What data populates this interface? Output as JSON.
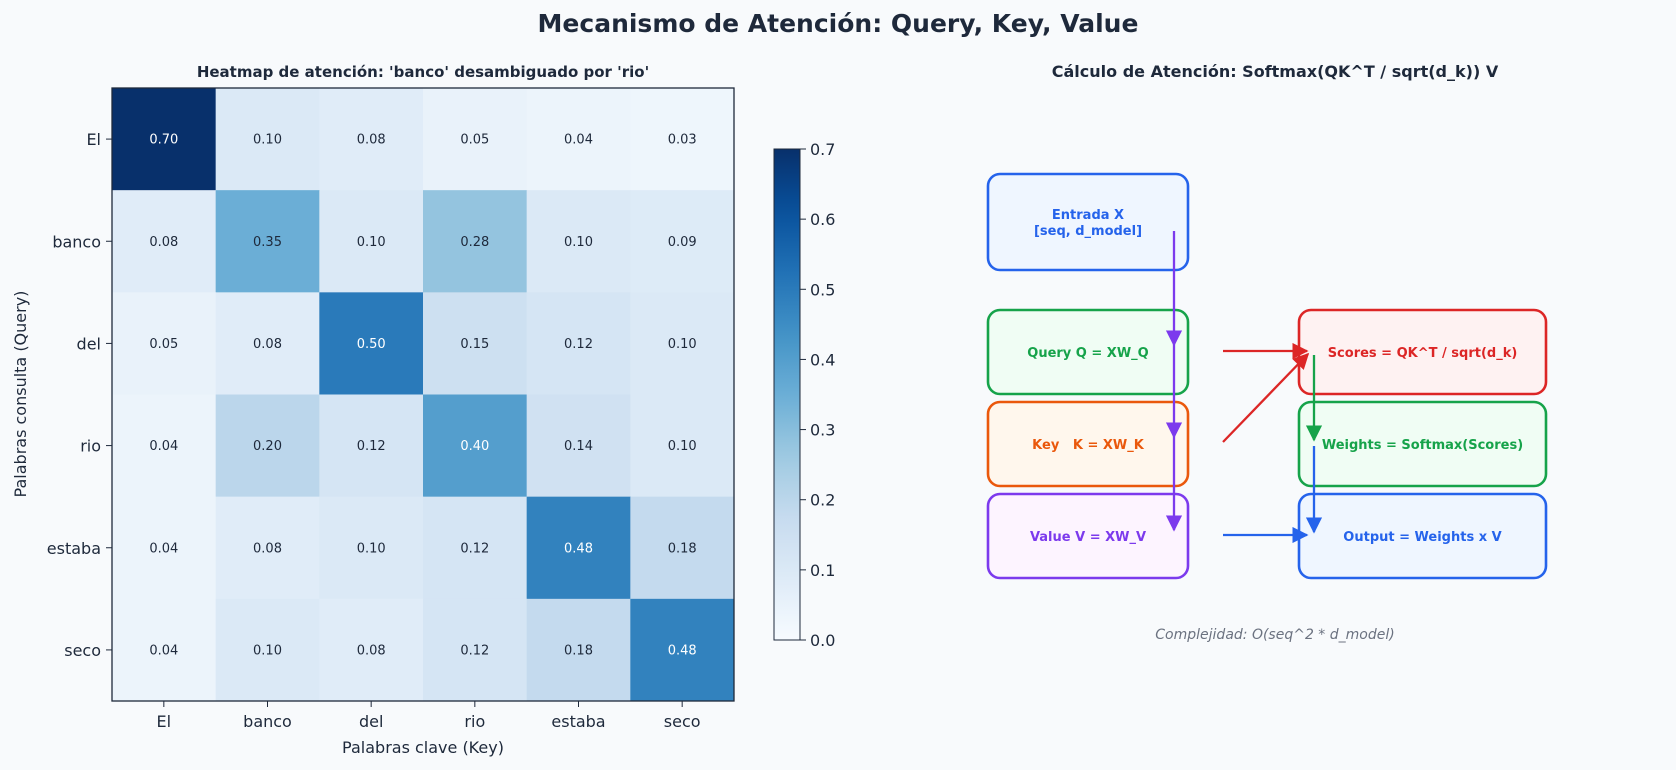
{
  "title": "Mecanismo de Atención: Query, Key, Value",
  "colors": {
    "blue": "#2563eb",
    "green": "#16a34a",
    "orange": "#ea580c",
    "purple": "#7c3aed",
    "red": "#dc2626"
  },
  "chart_data": {
    "type": "heatmap",
    "title": "Heatmap de atención: 'banco' desambiguado por 'rio'",
    "xlabel": "Palabras clave (Key)",
    "ylabel": "Palabras consulta (Query)",
    "x_labels": [
      "El",
      "banco",
      "del",
      "rio",
      "estaba",
      "seco"
    ],
    "y_labels": [
      "El",
      "banco",
      "del",
      "rio",
      "estaba",
      "seco"
    ],
    "values": [
      [
        0.7,
        0.1,
        0.08,
        0.05,
        0.04,
        0.03
      ],
      [
        0.08,
        0.35,
        0.1,
        0.28,
        0.1,
        0.09
      ],
      [
        0.05,
        0.08,
        0.5,
        0.15,
        0.12,
        0.1
      ],
      [
        0.04,
        0.2,
        0.12,
        0.4,
        0.14,
        0.1
      ],
      [
        0.04,
        0.08,
        0.1,
        0.12,
        0.48,
        0.18
      ],
      [
        0.04,
        0.1,
        0.08,
        0.12,
        0.18,
        0.48
      ]
    ],
    "colormap": "Blues",
    "colorbar": {
      "range": [
        0.0,
        0.7
      ],
      "ticks": [
        "0.0",
        "0.1",
        "0.2",
        "0.3",
        "0.4",
        "0.5",
        "0.6",
        "0.7"
      ]
    }
  },
  "diagram": {
    "title": "Cálculo de Atención: Softmax(QK^T / sqrt(d_k)) V",
    "boxes": [
      {
        "id": "entrada",
        "lines": [
          "Entrada X",
          "[seq, d_model]"
        ],
        "color": "#2563eb",
        "fill": "#eff6ff"
      },
      {
        "id": "query",
        "lines": [
          "Query Q = XW_Q"
        ],
        "color": "#16a34a",
        "fill": "#f0fdf4"
      },
      {
        "id": "key",
        "lines": [
          "Key   K = XW_K"
        ],
        "color": "#ea580c",
        "fill": "#fff7ed"
      },
      {
        "id": "value",
        "lines": [
          "Value V = XW_V"
        ],
        "color": "#7c3aed",
        "fill": "#fdf4ff"
      },
      {
        "id": "scores",
        "lines": [
          "Scores = QK^T / sqrt(d_k)"
        ],
        "color": "#dc2626",
        "fill": "#fef2f2"
      },
      {
        "id": "weights",
        "lines": [
          "Weights = Softmax(Scores)"
        ],
        "color": "#16a34a",
        "fill": "#f0fdf4"
      },
      {
        "id": "output",
        "lines": [
          "Output = Weights x V"
        ],
        "color": "#2563eb",
        "fill": "#eff6ff"
      }
    ],
    "note": "Complejidad: O(seq^2 * d_model)"
  }
}
